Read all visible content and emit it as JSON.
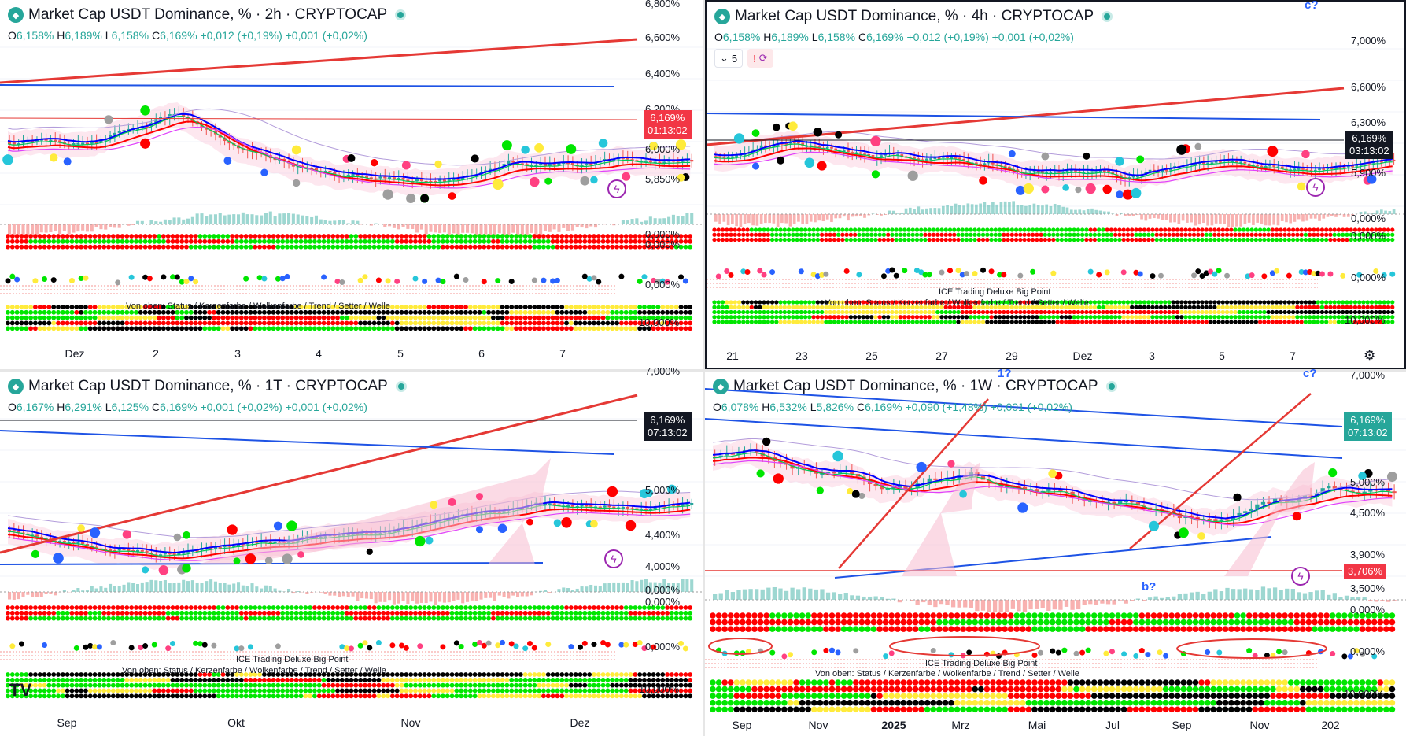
{
  "panels": [
    {
      "id": "p2h",
      "title": "Market Cap USDT Dominance, % · 2h · CRYPTOCAP",
      "ohlc": {
        "o": "6,158%",
        "h": "6,189%",
        "l": "6,158%",
        "c": "6,169%",
        "chg": "+0,012 (+0,19%)",
        "chg2": "+0,001 (+0,02%)"
      },
      "price_labels": [
        "6,800%",
        "6,600%",
        "6,400%",
        "6,200%",
        "6,000%",
        "5,850%"
      ],
      "osc_labels": [
        "0,000%",
        "0,000%",
        "0,000%",
        "10,000%"
      ],
      "last_price": "6,169%",
      "countdown": "01:13:02",
      "tag_color": "#f23645",
      "x_labels": [
        "Dez",
        "2",
        "3",
        "4",
        "5",
        "6",
        "7"
      ],
      "legend_text": "Von oben: Status / Kerzenfarbe / Wolkenfarbe / Trend / Setter / Welle"
    },
    {
      "id": "p4h",
      "title": "Market Cap USDT Dominance, % · 4h · CRYPTOCAP",
      "ohlc": {
        "o": "6,158%",
        "h": "6,189%",
        "l": "6,158%",
        "c": "6,169%",
        "chg": "+0,012 (+0,19%)",
        "chg2": "+0,001 (+0,02%)"
      },
      "price_labels": [
        "7,000%",
        "6,600%",
        "6,300%",
        "5,900%"
      ],
      "osc_labels": [
        "0,000%",
        "0,000%",
        "0,000%",
        "10,000%"
      ],
      "last_price": "6,169%",
      "countdown": "03:13:02",
      "tag_color": "#131722",
      "x_labels": [
        "21",
        "23",
        "25",
        "27",
        "29",
        "Dez",
        "3",
        "5",
        "7"
      ],
      "legend_title": "ICE Trading Deluxe Big Point",
      "legend_text": "Von oben: Status / Kerzenfarbe / Wolkenfarbe / Trend / Setter / Welle",
      "toolbar": {
        "count": "5",
        "alert": "!"
      }
    },
    {
      "id": "p1d",
      "title": "Market Cap USDT Dominance, % · 1T · CRYPTOCAP",
      "ohlc": {
        "o": "6,167%",
        "h": "6,291%",
        "l": "6,125%",
        "c": "6,169%",
        "chg": "+0,001 (+0,02%)",
        "chg2": "+0,001 (+0,02%)"
      },
      "price_labels": [
        "7,000%",
        "5,000%",
        "4,400%",
        "4,000%"
      ],
      "osc_labels": [
        "0,000%",
        "0,000%",
        "0,000%",
        "10,000%"
      ],
      "last_price": "6,169%",
      "countdown": "07:13:02",
      "tag_color": "#131722",
      "x_labels": [
        "Sep",
        "Okt",
        "Nov",
        "Dez"
      ],
      "legend_title": "ICE Trading Deluxe Big Point",
      "legend_text": "Von oben: Status / Kerzenfarbe / Wolkenfarbe / Trend / Setter / Welle"
    },
    {
      "id": "p1w",
      "title": "Market Cap USDT Dominance, % · 1W · CRYPTOCAP",
      "ohlc": {
        "o": "6,078%",
        "h": "6,532%",
        "l": "5,826%",
        "c": "6,169%",
        "chg": "+0,090 (+1,48%)",
        "chg2": "+0,001 (+0,02%)"
      },
      "price_labels": [
        "7,000%",
        "5,000%",
        "4,500%",
        "3,900%",
        "3,500%"
      ],
      "osc_labels": [
        "0,000%",
        "0,000%",
        "10,000%"
      ],
      "last_price": "6,169%",
      "countdown": "07:13:02",
      "tag_color": "#26a69a",
      "level_price": "3,706%",
      "x_labels": [
        "Sep",
        "Nov",
        "2025",
        "Mrz",
        "Mai",
        "Jul",
        "Sep",
        "Nov",
        "202"
      ],
      "legend_title": "ICE Trading Deluxe Big Point",
      "legend_text": "Von oben: Status / Kerzenfarbe / Wolkenfarbe / Trend / Setter / Welle",
      "wave_labels": [
        "1?",
        "b?",
        "c?"
      ]
    }
  ],
  "extra_label": "c?",
  "icons": {
    "logo": "tether-logo-icon",
    "alert": "lightning-alert-icon",
    "settings": "gear-icon",
    "tv": "tradingview-logo-icon"
  }
}
